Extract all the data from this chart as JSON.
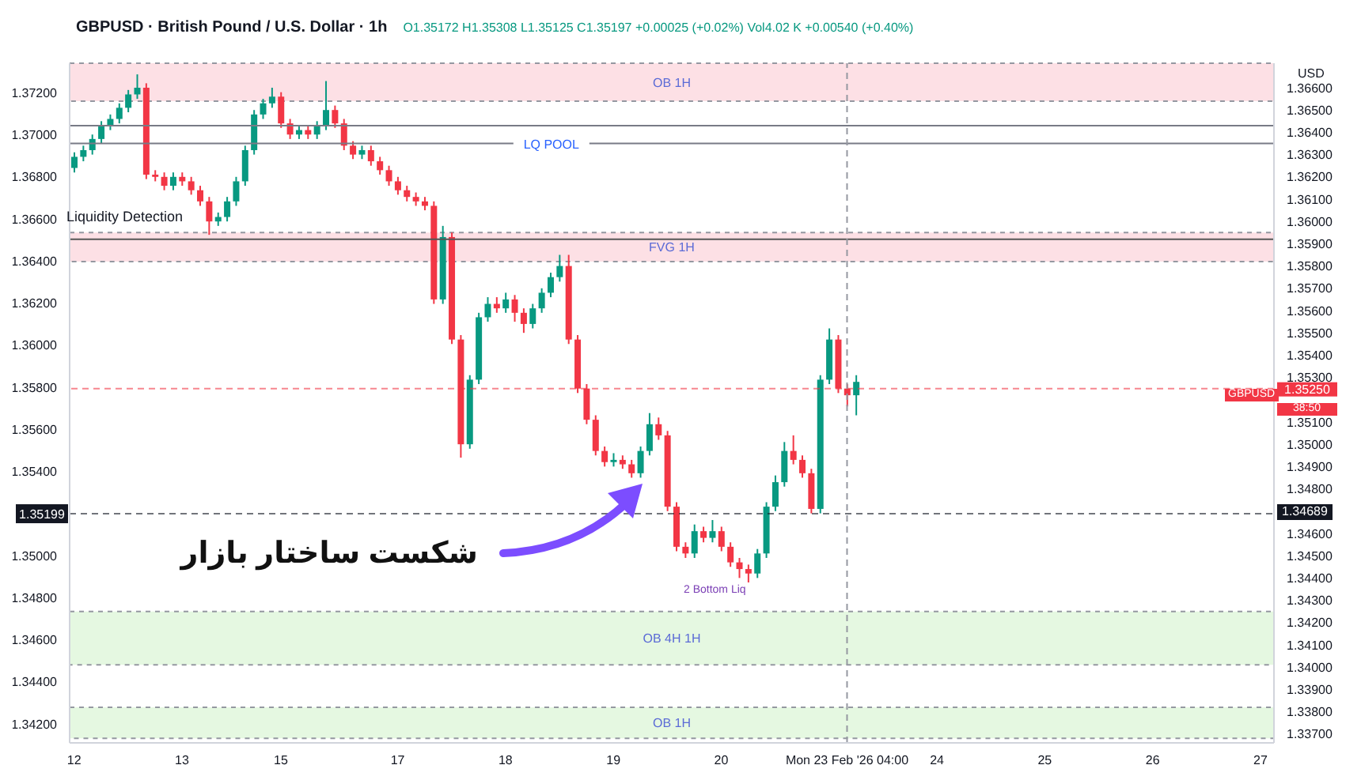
{
  "chart_data": {
    "type": "candlestick",
    "title": "GBPUSD · British Pound / U.S. Dollar · 1h",
    "subtitle": "O1.35172 H1.35308 L1.35125 C1.35197 +0.00025 (+0.02%) Vol4.02 K +0.00540 (+0.40%)",
    "categories": [
      "12",
      null,
      null,
      null,
      null,
      null,
      null,
      null,
      null,
      null,
      null,
      null,
      "13",
      null,
      null,
      null,
      null,
      null,
      null,
      null,
      null,
      null,
      null,
      "15",
      null,
      null,
      null,
      null,
      null,
      null,
      null,
      null,
      null,
      null,
      null,
      null,
      "17",
      null,
      null,
      null,
      null,
      null,
      null,
      null,
      null,
      null,
      null,
      null,
      "18",
      null,
      null,
      null,
      null,
      null,
      null,
      null,
      null,
      null,
      null,
      null,
      "19",
      null,
      null,
      null,
      null,
      null,
      null,
      null,
      null,
      null,
      null,
      null,
      "20",
      null,
      null,
      null,
      null,
      null,
      null,
      null,
      null,
      null,
      null,
      null,
      null,
      null,
      "Mon 23 Feb '26  04:00",
      null,
      null,
      null,
      null,
      null,
      null,
      null,
      null,
      null,
      "24",
      null,
      null,
      null,
      null,
      null,
      null,
      null,
      null,
      null,
      null,
      null,
      "25",
      null,
      null,
      null,
      null,
      null,
      null,
      null,
      null,
      null,
      null,
      null,
      "26",
      null,
      null,
      null,
      null,
      null,
      null,
      null,
      null,
      null,
      null,
      null,
      "27",
      null
    ],
    "ohlc": [
      [
        1.3624,
        1.3631,
        1.3622,
        1.3629
      ],
      [
        1.3629,
        1.3634,
        1.3627,
        1.3632
      ],
      [
        1.3632,
        1.3639,
        1.363,
        1.3637
      ],
      [
        1.3637,
        1.3645,
        1.3635,
        1.3643
      ],
      [
        1.3643,
        1.3648,
        1.3641,
        1.3646
      ],
      [
        1.3646,
        1.3653,
        1.3644,
        1.3651
      ],
      [
        1.3651,
        1.3659,
        1.3649,
        1.3657
      ],
      [
        1.3657,
        1.3666,
        1.3655,
        1.366
      ],
      [
        1.366,
        1.3662,
        1.3619,
        1.3621
      ],
      [
        1.3621,
        1.3623,
        1.3618,
        1.362
      ],
      [
        1.362,
        1.3622,
        1.3614,
        1.3616
      ],
      [
        1.3616,
        1.3622,
        1.3614,
        1.362
      ],
      [
        1.362,
        1.3622,
        1.3616,
        1.3618
      ],
      [
        1.3618,
        1.362,
        1.3612,
        1.3614
      ],
      [
        1.3614,
        1.3616,
        1.3607,
        1.3609
      ],
      [
        1.3609,
        1.3611,
        1.3594,
        1.36
      ],
      [
        1.36,
        1.3604,
        1.3598,
        1.3602
      ],
      [
        1.3602,
        1.3611,
        1.36,
        1.3609
      ],
      [
        1.3609,
        1.362,
        1.3607,
        1.3618
      ],
      [
        1.3618,
        1.3634,
        1.3616,
        1.3632
      ],
      [
        1.3632,
        1.365,
        1.363,
        1.3648
      ],
      [
        1.3648,
        1.3655,
        1.3646,
        1.3653
      ],
      [
        1.3653,
        1.366,
        1.3651,
        1.3656
      ],
      [
        1.3656,
        1.3658,
        1.3642,
        1.3644
      ],
      [
        1.3644,
        1.3646,
        1.3637,
        1.3639
      ],
      [
        1.3639,
        1.3643,
        1.3637,
        1.3641
      ],
      [
        1.3641,
        1.3643,
        1.3637,
        1.3639
      ],
      [
        1.3639,
        1.3645,
        1.3637,
        1.3643
      ],
      [
        1.3643,
        1.3663,
        1.3641,
        1.365
      ],
      [
        1.365,
        1.3652,
        1.3642,
        1.3644
      ],
      [
        1.3644,
        1.3646,
        1.3632,
        1.3634
      ],
      [
        1.3634,
        1.3636,
        1.3628,
        1.363
      ],
      [
        1.363,
        1.3634,
        1.3628,
        1.3632
      ],
      [
        1.3632,
        1.3634,
        1.3625,
        1.3627
      ],
      [
        1.3627,
        1.3629,
        1.3621,
        1.3623
      ],
      [
        1.3623,
        1.3625,
        1.3616,
        1.3618
      ],
      [
        1.3618,
        1.362,
        1.3612,
        1.3614
      ],
      [
        1.3614,
        1.3616,
        1.3609,
        1.3611
      ],
      [
        1.3611,
        1.3613,
        1.3607,
        1.3609
      ],
      [
        1.3609,
        1.3611,
        1.3605,
        1.3607
      ],
      [
        1.3607,
        1.3609,
        1.3563,
        1.3565
      ],
      [
        1.3565,
        1.3598,
        1.3563,
        1.3593
      ],
      [
        1.3593,
        1.3595,
        1.3545,
        1.3547
      ],
      [
        1.3547,
        1.3549,
        1.3494,
        1.35
      ],
      [
        1.35,
        1.3531,
        1.3498,
        1.3529
      ],
      [
        1.3529,
        1.3559,
        1.3527,
        1.3557
      ],
      [
        1.3557,
        1.3566,
        1.3555,
        1.3563
      ],
      [
        1.3563,
        1.3566,
        1.3559,
        1.3561
      ],
      [
        1.3561,
        1.3568,
        1.3559,
        1.3565
      ],
      [
        1.3565,
        1.3567,
        1.3555,
        1.3559
      ],
      [
        1.3559,
        1.3561,
        1.355,
        1.3554
      ],
      [
        1.3554,
        1.3563,
        1.3552,
        1.3561
      ],
      [
        1.3561,
        1.357,
        1.3559,
        1.3568
      ],
      [
        1.3568,
        1.3577,
        1.3566,
        1.3575
      ],
      [
        1.3575,
        1.3585,
        1.3573,
        1.358
      ],
      [
        1.358,
        1.3585,
        1.3545,
        1.3547
      ],
      [
        1.3547,
        1.3549,
        1.3523,
        1.3525
      ],
      [
        1.3525,
        1.3527,
        1.3509,
        1.3511
      ],
      [
        1.3511,
        1.3513,
        1.3495,
        1.3497
      ],
      [
        1.3497,
        1.3499,
        1.349,
        1.3492
      ],
      [
        1.3492,
        1.3496,
        1.349,
        1.3493
      ],
      [
        1.3493,
        1.3495,
        1.3489,
        1.3491
      ],
      [
        1.3491,
        1.3493,
        1.3485,
        1.3487
      ],
      [
        1.3487,
        1.3499,
        1.3485,
        1.3497
      ],
      [
        1.3497,
        1.3514,
        1.3495,
        1.3509
      ],
      [
        1.3509,
        1.3512,
        1.3502,
        1.3504
      ],
      [
        1.3504,
        1.3506,
        1.347,
        1.3472
      ],
      [
        1.3472,
        1.3474,
        1.3452,
        1.3454
      ],
      [
        1.3454,
        1.3456,
        1.3449,
        1.3451
      ],
      [
        1.3451,
        1.3464,
        1.3449,
        1.3461
      ],
      [
        1.3461,
        1.3463,
        1.3456,
        1.3458
      ],
      [
        1.3458,
        1.3466,
        1.3456,
        1.3461
      ],
      [
        1.3461,
        1.3463,
        1.3452,
        1.3454
      ],
      [
        1.3454,
        1.3456,
        1.3445,
        1.3447
      ],
      [
        1.3447,
        1.3449,
        1.344,
        1.3444
      ],
      [
        1.3444,
        1.3446,
        1.3438,
        1.3442
      ],
      [
        1.3442,
        1.3453,
        1.344,
        1.3451
      ],
      [
        1.3451,
        1.3474,
        1.3449,
        1.3472
      ],
      [
        1.3472,
        1.3486,
        1.347,
        1.3483
      ],
      [
        1.3483,
        1.3501,
        1.3481,
        1.3497
      ],
      [
        1.3497,
        1.3504,
        1.3491,
        1.3493
      ],
      [
        1.3493,
        1.3495,
        1.3485,
        1.3487
      ],
      [
        1.3487,
        1.3489,
        1.3469,
        1.3471
      ],
      [
        1.3471,
        1.3531,
        1.3469,
        1.3529
      ],
      [
        1.3529,
        1.3552,
        1.3527,
        1.3547
      ],
      [
        1.3547,
        1.3549,
        1.3523,
        1.3525
      ],
      [
        1.3525,
        1.3527,
        1.3517,
        1.3522
      ],
      [
        1.3522,
        1.3531,
        1.3513,
        1.3528
      ],
      null,
      null,
      null,
      null,
      null,
      null,
      null,
      null,
      null,
      null,
      null,
      null,
      null,
      null,
      null,
      null,
      null,
      null,
      null,
      null,
      null,
      null,
      null,
      null,
      null,
      null,
      null,
      null,
      null,
      null,
      null,
      null,
      null,
      null,
      null,
      null,
      null,
      null,
      null,
      null,
      null,
      null,
      null,
      null,
      null,
      null
    ],
    "colors": [
      "#089981",
      "#089981",
      "#089981",
      "#089981",
      "#089981",
      "#089981",
      "#089981",
      "#089981",
      "#f23645",
      "#f23645",
      "#f23645",
      "#089981",
      "#f23645",
      "#f23645",
      "#f23645",
      "#f23645",
      "#089981",
      "#089981",
      "#089981",
      "#089981",
      "#089981",
      "#089981",
      "#089981",
      "#f23645",
      "#f23645",
      "#089981",
      "#f23645",
      "#089981",
      "#089981",
      "#f23645",
      "#f23645",
      "#f23645",
      "#089981",
      "#f23645",
      "#f23645",
      "#f23645",
      "#f23645",
      "#f23645",
      "#f23645",
      "#f23645",
      "#f23645",
      "#089981",
      "#f23645",
      "#f23645",
      "#089981",
      "#089981",
      "#089981",
      "#f23645",
      "#089981",
      "#f23645",
      "#f23645",
      "#089981",
      "#089981",
      "#089981",
      "#089981",
      "#f23645",
      "#f23645",
      "#f23645",
      "#f23645",
      "#f23645",
      "#089981",
      "#f23645",
      "#f23645",
      "#089981",
      "#089981",
      "#f23645",
      "#f23645",
      "#f23645",
      "#f23645",
      "#089981",
      "#f23645",
      "#089981",
      "#f23645",
      "#f23645",
      "#f23645",
      "#f23645",
      "#089981",
      "#089981",
      "#089981",
      "#089981",
      "#f23645",
      "#f23645",
      "#f23645",
      "#089981",
      "#089981",
      "#f23645",
      "#f23645",
      "#089981",
      null,
      null,
      null,
      null,
      null,
      null,
      null,
      null,
      null,
      null,
      null,
      null,
      null,
      null,
      null,
      null,
      null,
      null,
      null,
      null,
      null,
      null,
      null,
      null,
      null,
      null,
      null,
      null,
      null,
      null,
      null,
      null,
      null,
      null,
      null,
      null,
      null,
      null,
      null,
      null,
      null,
      null,
      null,
      null,
      null,
      null
    ],
    "ylim": [
      1.3366,
      1.3671
    ],
    "yticks": [
      {
        "value": 1.366,
        "label": "1.36600"
      },
      {
        "value": 1.365,
        "label": "1.36500"
      },
      {
        "value": 1.364,
        "label": "1.36400"
      },
      {
        "value": 1.363,
        "label": "1.36300"
      },
      {
        "value": 1.362,
        "label": "1.36200"
      },
      {
        "value": 1.361,
        "label": "1.36100"
      },
      {
        "value": 1.36,
        "label": "1.36000"
      },
      {
        "value": 1.359,
        "label": "1.35900"
      },
      {
        "value": 1.358,
        "label": "1.35800"
      },
      {
        "value": 1.357,
        "label": "1.35700"
      },
      {
        "value": 1.356,
        "label": "1.35600"
      },
      {
        "value": 1.355,
        "label": "1.35500"
      },
      {
        "value": 1.354,
        "label": "1.35400"
      },
      {
        "value": 1.353,
        "label": "1.35300"
      },
      {
        "value": 1.351,
        "label": "1.35100"
      },
      {
        "value": 1.35,
        "label": "1.35000"
      },
      {
        "value": 1.349,
        "label": "1.34900"
      },
      {
        "value": 1.348,
        "label": "1.34800"
      },
      {
        "value": 1.346,
        "label": "1.34600"
      },
      {
        "value": 1.345,
        "label": "1.34500"
      },
      {
        "value": 1.344,
        "label": "1.34400"
      },
      {
        "value": 1.343,
        "label": "1.34300"
      },
      {
        "value": 1.342,
        "label": "1.34200"
      },
      {
        "value": 1.341,
        "label": "1.34100"
      },
      {
        "value": 1.34,
        "label": "1.34000"
      },
      {
        "value": 1.339,
        "label": "1.33900"
      },
      {
        "value": 1.338,
        "label": "1.33800"
      },
      {
        "value": 1.337,
        "label": "1.33700"
      }
    ],
    "y2lim": [
      1.3411,
      1.3734
    ],
    "y2ticks": [
      {
        "value": 1.372,
        "label": "1.37200"
      },
      {
        "value": 1.37,
        "label": "1.37000"
      },
      {
        "value": 1.368,
        "label": "1.36800"
      },
      {
        "value": 1.366,
        "label": "1.36600"
      },
      {
        "value": 1.364,
        "label": "1.36400"
      },
      {
        "value": 1.362,
        "label": "1.36200"
      },
      {
        "value": 1.36,
        "label": "1.36000"
      },
      {
        "value": 1.358,
        "label": "1.35800"
      },
      {
        "value": 1.356,
        "label": "1.35600"
      },
      {
        "value": 1.354,
        "label": "1.35400"
      },
      {
        "value": 1.35,
        "label": "1.35000"
      },
      {
        "value": 1.348,
        "label": "1.34800"
      },
      {
        "value": 1.346,
        "label": "1.34600"
      },
      {
        "value": 1.344,
        "label": "1.34400"
      },
      {
        "value": 1.342,
        "label": "1.34200"
      }
    ],
    "bands": [
      {
        "axis": "y",
        "from": 1.3654,
        "to": 1.3671,
        "label": "OB 1H",
        "color": "#fde0e5"
      },
      {
        "axis": "y",
        "from": 1.3582,
        "to": 1.3595,
        "label": "FVG 1H",
        "color": "#fde0e5"
      },
      {
        "axis": "y",
        "from": 1.3401,
        "to": 1.3425,
        "label": "OB 4H 1H",
        "color": "#e5f8e1"
      },
      {
        "axis": "y",
        "from": 1.3368,
        "to": 1.3382,
        "label": "OB 1H",
        "color": "#e5f8e1"
      }
    ],
    "ref_lines": [
      {
        "axis": "y",
        "value": 1.3635,
        "label": "LQ POOL",
        "color": "#787b86",
        "line_style": "solid"
      },
      {
        "axis": "y",
        "value": 1.3643,
        "color": "#787b86",
        "line_style": "solid"
      },
      {
        "axis": "y",
        "value": 1.3592,
        "color": "#555555",
        "line_style": "solid"
      },
      {
        "axis": "y",
        "value": 1.3525,
        "label": "1.35250",
        "color": "#f23645",
        "line_style": "dashed"
      },
      {
        "axis": "y2",
        "value": 1.35199,
        "label": "1.35199",
        "color": "#131722",
        "line_style": "dashed"
      },
      {
        "axis": "x",
        "value": "Mon 23 Feb '26  04:00",
        "color": "#9598a1",
        "line_style": "dashed"
      }
    ],
    "annotations": [
      "شکست ساختار بازار",
      "2 Bottom Liq",
      "Liquidity Detection",
      "USD",
      "GBPUSD",
      "38:50",
      "1.34689"
    ]
  }
}
